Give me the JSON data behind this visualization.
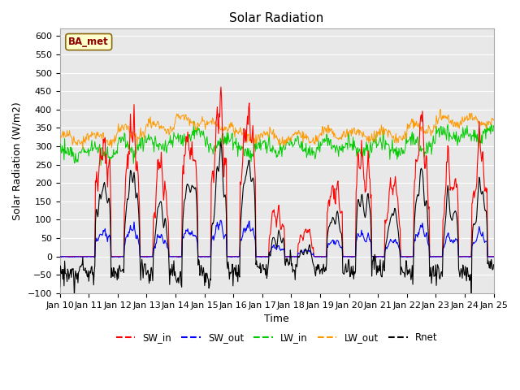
{
  "title": "Solar Radiation",
  "xlabel": "Time",
  "ylabel": "Solar Radiation (W/m2)",
  "ylim": [
    -100,
    620
  ],
  "yticks": [
    -100,
    -50,
    0,
    50,
    100,
    150,
    200,
    250,
    300,
    350,
    400,
    450,
    500,
    550,
    600
  ],
  "xlim_days": [
    10,
    25
  ],
  "xtick_labels": [
    "Jan 10",
    "Jan 11",
    "Jan 12",
    "Jan 13",
    "Jan 14",
    "Jan 15",
    "Jan 16",
    "Jan 17",
    "Jan 18",
    "Jan 19",
    "Jan 20",
    "Jan 21",
    "Jan 22",
    "Jan 23",
    "Jan 24",
    "Jan 25"
  ],
  "colors": {
    "SW_in": "#ff0000",
    "SW_out": "#0000ff",
    "LW_in": "#00cc00",
    "LW_out": "#ff9900",
    "Rnet": "#000000"
  },
  "legend_labels": [
    "SW_in",
    "SW_out",
    "LW_in",
    "LW_out",
    "Rnet"
  ],
  "station_label": "BA_met",
  "plot_bg_color": "#e8e8e8",
  "fig_bg_color": "#ffffff",
  "grid_color": "#ffffff"
}
